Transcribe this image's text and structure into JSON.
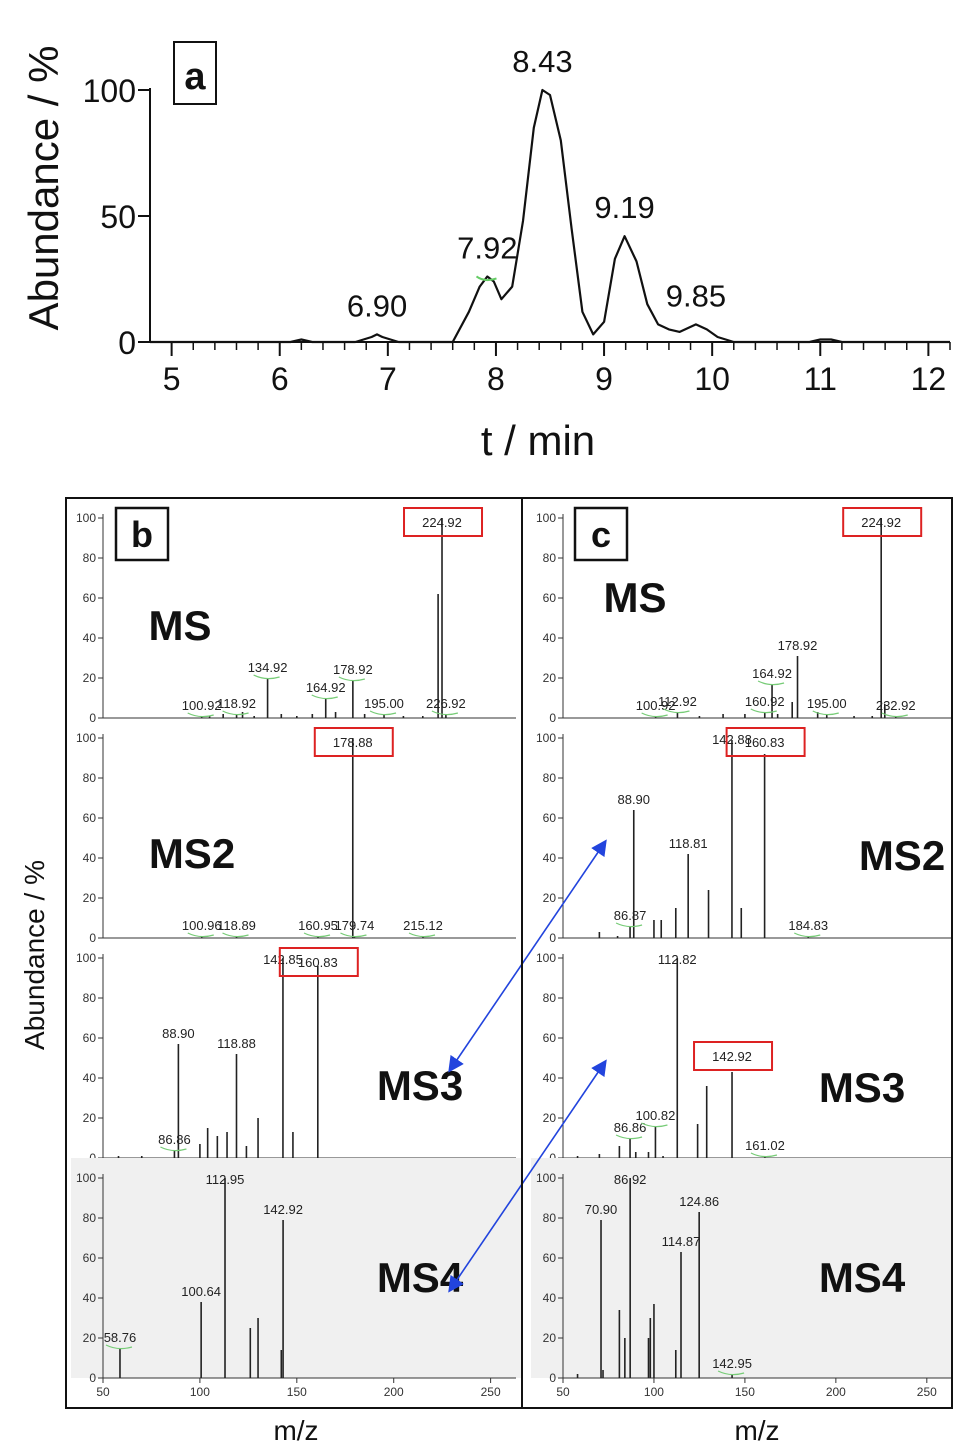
{
  "chromatogram": {
    "panel_label": "a",
    "ylabel": "Abundance / %",
    "xlabel": "t / min",
    "xlim": [
      4.8,
      12.2
    ],
    "ylim": [
      0,
      100
    ],
    "xticks": [
      5,
      6,
      7,
      8,
      9,
      10,
      11,
      12
    ],
    "yticks": [
      0,
      50,
      100
    ],
    "peak_labels": [
      "6.90",
      "7.92",
      "8.43",
      "9.19",
      "9.85"
    ]
  },
  "spectra_section": {
    "ylabel": "Abundance / %",
    "xlabel_b": "m/z",
    "xlabel_c": "m/z"
  },
  "chart_data": [
    {
      "type": "line",
      "x": [
        4.8,
        6.1,
        6.2,
        6.3,
        6.7,
        6.85,
        6.9,
        6.95,
        7.1,
        7.6,
        7.75,
        7.85,
        7.92,
        7.98,
        8.05,
        8.15,
        8.25,
        8.35,
        8.43,
        8.5,
        8.6,
        8.7,
        8.8,
        8.9,
        9.0,
        9.1,
        9.19,
        9.3,
        9.4,
        9.5,
        9.6,
        9.7,
        9.85,
        9.95,
        10.05,
        10.2,
        10.9,
        11.0,
        11.1,
        11.2,
        12.2
      ],
      "y": [
        0,
        0,
        1,
        0,
        0,
        2,
        3,
        2,
        0,
        0,
        12,
        22,
        26,
        24,
        17,
        22,
        48,
        85,
        100,
        98,
        80,
        45,
        12,
        3,
        8,
        33,
        42,
        32,
        15,
        7,
        5,
        4,
        7,
        5,
        2,
        0,
        0,
        1,
        1,
        0,
        0
      ]
    },
    {
      "type": "bar",
      "panel": "b",
      "scans": [
        {
          "name": "MS",
          "precursor": "224.92",
          "label_values": [
            "100.92",
            "118.92",
            "134.92",
            "164.92",
            "178.92",
            "195.00",
            "224.92",
            "226.92"
          ],
          "x": [
            100.92,
            105,
            112,
            118.92,
            122,
            128,
            134.92,
            142,
            150,
            158,
            164.92,
            170,
            178.92,
            185,
            195.0,
            205,
            215,
            222.9,
            224.92,
            226.92
          ],
          "y": [
            1,
            1,
            2,
            2,
            3,
            1,
            20,
            2,
            1,
            2,
            10,
            3,
            19,
            2,
            2,
            1,
            1,
            62,
            100,
            2
          ]
        },
        {
          "name": "MS2",
          "precursor": "178.88",
          "label_values": [
            "100.96",
            "118.89",
            "160.95",
            "178.88",
            "179.74",
            "215.12"
          ],
          "x": [
            100.96,
            118.89,
            160.95,
            178.88,
            179.74,
            215.12
          ],
          "y": [
            1,
            1,
            1,
            100,
            1,
            1
          ]
        },
        {
          "name": "MS3",
          "precursor": "160.83",
          "label_values": [
            "86.86",
            "88.90",
            "118.88",
            "142.85",
            "160.83"
          ],
          "x": [
            58,
            70,
            86.86,
            88.9,
            100,
            104,
            109,
            114,
            118.88,
            124,
            130,
            142.85,
            148,
            160.83
          ],
          "y": [
            1,
            1,
            4,
            57,
            7,
            15,
            11,
            13,
            52,
            6,
            20,
            100,
            13,
            96
          ]
        },
        {
          "name": "MS4",
          "precursor": "",
          "label_values": [
            "58.76",
            "100.64",
            "112.95",
            "142.92"
          ],
          "x": [
            58.76,
            100.64,
            112.95,
            126,
            130,
            142.0,
            142.92
          ],
          "y": [
            15,
            38,
            100,
            25,
            30,
            14,
            79
          ]
        }
      ],
      "xlim": [
        50,
        260
      ],
      "ylim": [
        0,
        100
      ],
      "xticks": [
        50,
        100,
        150,
        200,
        250
      ],
      "yticks": [
        0,
        20,
        40,
        60,
        80,
        100
      ]
    },
    {
      "type": "bar",
      "panel": "c",
      "scans": [
        {
          "name": "MS",
          "precursor": "224.92",
          "label_values": [
            "100.92",
            "112.92",
            "160.92",
            "164.92",
            "178.92",
            "195.00",
            "224.92",
            "232.92"
          ],
          "x": [
            100.92,
            112.92,
            125,
            138,
            150,
            160.92,
            164.92,
            168,
            176,
            178.92,
            190,
            195.0,
            210,
            220,
            224.92,
            226.9,
            232.92
          ],
          "y": [
            1,
            3,
            1,
            2,
            2,
            3,
            17,
            2,
            8,
            31,
            3,
            2,
            1,
            1,
            100,
            7,
            1
          ]
        },
        {
          "name": "MS2",
          "precursor": "160.83",
          "label_values": [
            "86.87",
            "88.90",
            "118.81",
            "142.88",
            "160.83",
            "184.83"
          ],
          "x": [
            70,
            80,
            86.87,
            88.9,
            100,
            104,
            112,
            118.81,
            130,
            142.88,
            148,
            160.83,
            184.83
          ],
          "y": [
            3,
            1,
            6,
            64,
            9,
            9,
            15,
            42,
            24,
            99,
            15,
            92,
            1
          ]
        },
        {
          "name": "MS3",
          "precursor": "142.92",
          "label_values": [
            "86.86",
            "100.82",
            "112.82",
            "142.92",
            "161.02"
          ],
          "x": [
            58,
            70,
            81,
            86.86,
            90,
            97,
            100.82,
            105,
            112.82,
            124,
            129,
            142.92,
            161.02
          ],
          "y": [
            1,
            2,
            6,
            10,
            3,
            3,
            16,
            1,
            100,
            17,
            36,
            43,
            1
          ]
        },
        {
          "name": "MS4",
          "precursor": "",
          "label_values": [
            "70.90",
            "86.92",
            "114.87",
            "124.86",
            "142.95"
          ],
          "x": [
            58,
            70.9,
            72,
            81,
            84,
            86.92,
            97,
            98,
            100,
            112,
            114.87,
            124.86,
            142.95
          ],
          "y": [
            2,
            79,
            4,
            34,
            20,
            100,
            20,
            30,
            37,
            14,
            63,
            83,
            2
          ]
        }
      ],
      "xlim": [
        50,
        260
      ],
      "ylim": [
        0,
        100
      ],
      "xticks": [
        50,
        100,
        150,
        200,
        250
      ],
      "yticks": [
        0,
        20,
        40,
        60,
        80,
        100
      ]
    }
  ],
  "panels": {
    "b_label": "b",
    "c_label": "c"
  }
}
